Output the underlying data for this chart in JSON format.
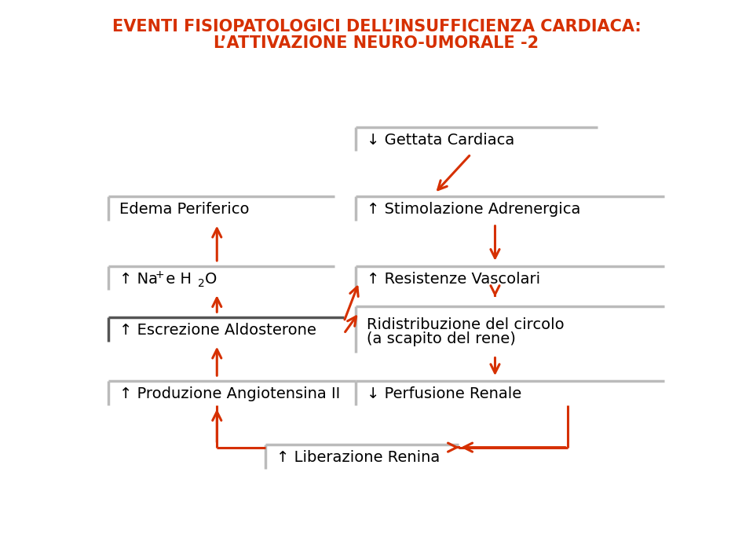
{
  "title_line1": "EVENTI FISIOPATOLOGICI DELL’INSUFFICIENZA CARDIACA:",
  "title_line2": "L’ATTIVAZIONE NEURO-UMORALE -2",
  "title_color": "#d63000",
  "arrow_color": "#d63000",
  "box_color_light": "#bbbbbb",
  "box_color_dark": "#555555",
  "bg_color": "#ffffff",
  "labels": {
    "gettata": "↓ Gettata Cardiaca",
    "stimolazione": "↑ Stimolazione Adrenergica",
    "resistenze": "↑ Resistenze Vascolari",
    "ridistribuzione1": "Ridistribuzione del circolo",
    "ridistribuzione2": "(a scapito del rene)",
    "perfusione": "↓ Perfusione Renale",
    "edema": "Edema Periferico",
    "na_h2o_pre": "↑ Na",
    "na_h2o_sup": "+",
    "na_h2o_mid": " e H",
    "na_h2o_sub": "2",
    "na_h2o_end": "O",
    "escrezione": "↑ Escrezione Aldosterone",
    "produzione": "↑ Produzione Angiotensina II",
    "liberazione": "↑ Liberazione Renina"
  },
  "fontsize": 14,
  "fontsize_small": 10
}
